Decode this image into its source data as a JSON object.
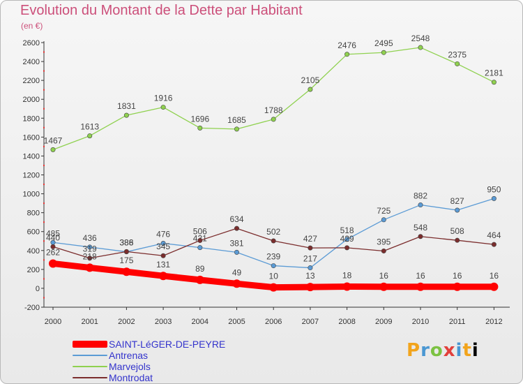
{
  "title": "Evolution du Montant de la Dette par Habitant",
  "unit_label": "(en €)",
  "logo_text": "Proxiti",
  "chart_data": {
    "type": "line",
    "title": "Evolution du Montant de la Dette par Habitant",
    "xlabel": "",
    "ylabel": "(en €)",
    "x": [
      "2000",
      "2001",
      "2002",
      "2003",
      "2004",
      "2005",
      "2006",
      "2007",
      "2008",
      "2009",
      "2010",
      "2011",
      "2012"
    ],
    "ylim": [
      -200,
      2600
    ],
    "yticks": [
      -200,
      0,
      200,
      400,
      600,
      800,
      1000,
      1200,
      1400,
      1600,
      1800,
      2000,
      2200,
      2400,
      2600
    ],
    "grid": false,
    "legend_position": "bottom-left",
    "series": [
      {
        "name": "SAINT-LéGER-DE-PEYRE",
        "color": "#ff0000",
        "values": [
          262,
          218,
          175,
          131,
          89,
          49,
          10,
          13,
          18,
          16,
          16,
          16,
          16
        ]
      },
      {
        "name": "Antrenas",
        "color": "#5b9bd5",
        "values": [
          485,
          436,
          386,
          476,
          431,
          381,
          239,
          217,
          518,
          725,
          882,
          827,
          950
        ]
      },
      {
        "name": "Marvejols",
        "color": "#8fd14f",
        "values": [
          1467,
          1613,
          1831,
          1916,
          1696,
          1685,
          1788,
          2105,
          2476,
          2495,
          2548,
          2375,
          2181
        ]
      },
      {
        "name": "Montrodat",
        "color": "#7b2d2d",
        "values": [
          440,
          319,
          388,
          345,
          506,
          634,
          502,
          427,
          429,
          395,
          548,
          508,
          464
        ]
      }
    ]
  }
}
